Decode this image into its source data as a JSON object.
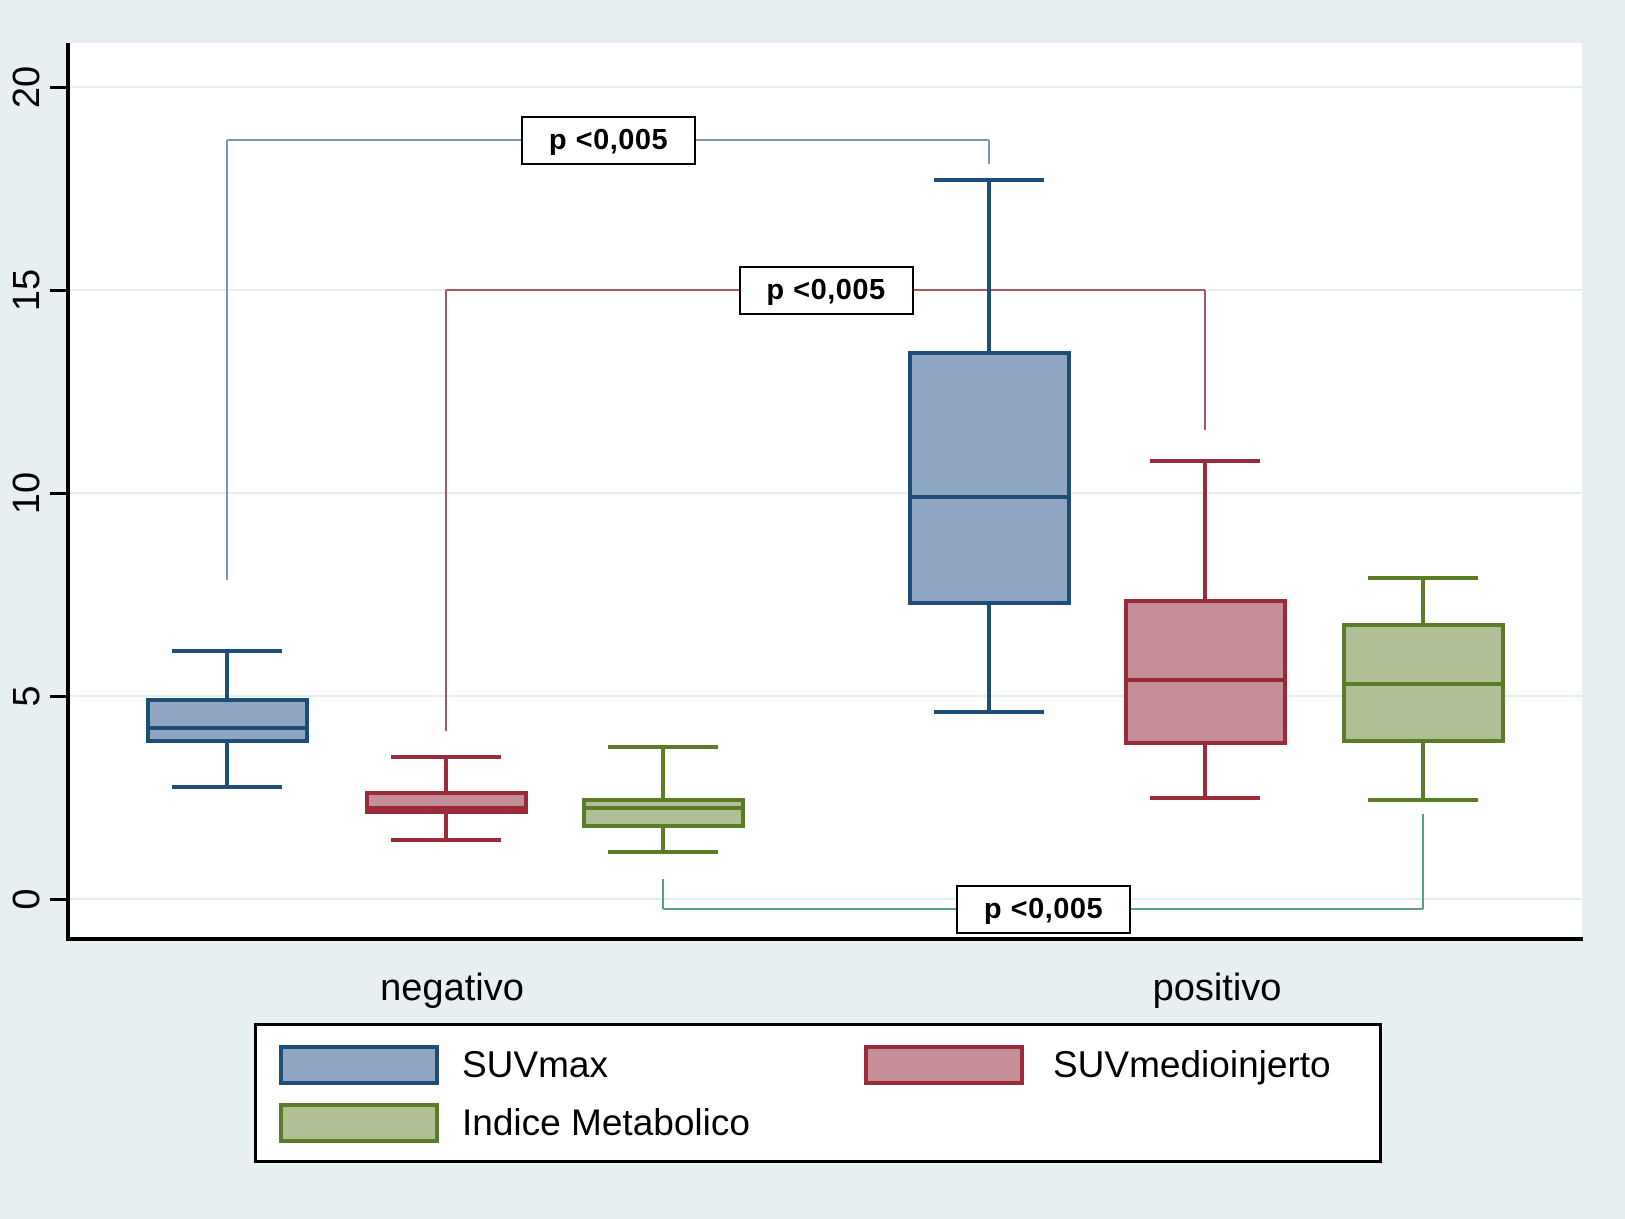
{
  "figure": {
    "background": "#e8eff2",
    "plot_background": "#ffffff",
    "gridline_color": "#e3edf2",
    "axis_color": "#000000"
  },
  "chart_data": {
    "type": "boxplot",
    "title": "",
    "xlabel": "",
    "ylabel": "",
    "ylim": [
      0,
      20
    ],
    "yticks": [
      0,
      5,
      10,
      15,
      20
    ],
    "grid": true,
    "legend_position": "bottom",
    "groups": [
      "negativo",
      "positivo"
    ],
    "series": [
      {
        "name": "SUVmax",
        "fill": "#8ea6c2",
        "stroke": "#1e4d76",
        "boxes": [
          {
            "group": "negativo",
            "low": 2.75,
            "q1": 3.85,
            "median": 4.2,
            "q3": 4.95,
            "high": 6.1
          },
          {
            "group": "positivo",
            "low": 4.6,
            "q1": 7.25,
            "median": 9.9,
            "q3": 13.5,
            "high": 17.7
          }
        ]
      },
      {
        "name": "SUVmedioinjerto",
        "fill": "#c48f98",
        "stroke": "#9b2b38",
        "boxes": [
          {
            "group": "negativo",
            "low": 1.45,
            "q1": 2.1,
            "median": 2.25,
            "q3": 2.65,
            "high": 3.5
          },
          {
            "group": "positivo",
            "low": 2.5,
            "q1": 3.8,
            "median": 5.4,
            "q3": 7.4,
            "high": 10.8
          }
        ]
      },
      {
        "name": "Indice Metabolico",
        "fill": "#b0bf95",
        "stroke": "#5b7d27",
        "boxes": [
          {
            "group": "negativo",
            "low": 1.15,
            "q1": 1.75,
            "median": 2.25,
            "q3": 2.5,
            "high": 3.75
          },
          {
            "group": "positivo",
            "low": 2.45,
            "q1": 3.85,
            "median": 5.3,
            "q3": 6.8,
            "high": 7.9
          }
        ]
      }
    ],
    "annotations": [
      {
        "label": "p <0,005",
        "series": "SUVmax",
        "between": [
          "negativo",
          "positivo"
        ],
        "color": "#7b97b8",
        "bar_y": 18.7,
        "left_end_y": 7.85,
        "right_end_y": 18.1
      },
      {
        "label": "p <0,005",
        "series": "SUVmedioinjerto",
        "between": [
          "negativo",
          "positivo"
        ],
        "color": "#a65a60",
        "bar_y": 15.0,
        "left_end_y": 4.15,
        "right_end_y": 11.55
      },
      {
        "label": "p <0,005",
        "series": "Indice Metabolico",
        "between": [
          "negativo",
          "positivo"
        ],
        "color": "#57a17e",
        "bar_y": -0.25,
        "left_end_y": 0.5,
        "right_end_y": 2.1
      }
    ]
  }
}
